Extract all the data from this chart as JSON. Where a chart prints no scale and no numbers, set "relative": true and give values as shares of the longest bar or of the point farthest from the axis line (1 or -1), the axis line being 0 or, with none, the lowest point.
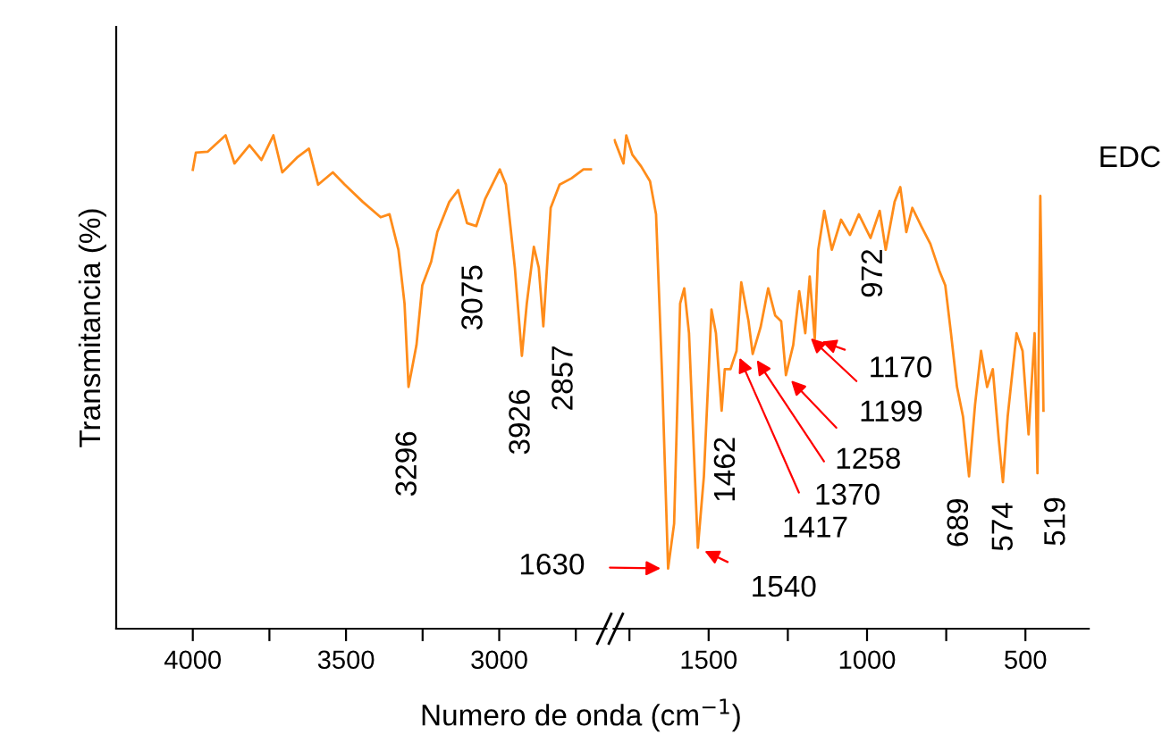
{
  "chart_data": [
    {
      "type": "line",
      "relative": true,
      "ylabel": "Transmitancia (%)",
      "xlabel": "Numero de onda (cm$^{−1}$)",
      "tick_labels": "x",
      "xlim": [
        4250,
        2650
      ],
      "xticks": [
        4000,
        {
          "value": 3750,
          "label": null
        },
        3500,
        {
          "value": 3250,
          "label": null
        },
        3000,
        {
          "value": 2750,
          "label": null
        }
      ],
      "series": [
        {
          "color": "#ff8c1a",
          "x": [
            4000,
            3990,
            3951,
            3893,
            3864,
            3815,
            3776,
            3737,
            3708,
            3660,
            3621,
            3591,
            3543,
            3504,
            3445,
            3387,
            3358,
            3329,
            3309,
            3296,
            3270,
            3251,
            3222,
            3202,
            3163,
            3134,
            3105,
            3075,
            3046,
            2998,
            2978,
            2949,
            2926,
            2910,
            2887,
            2871,
            2856,
            2832,
            2803,
            2764,
            2725,
            2701
          ],
          "values": [
            0.93,
            0.965,
            0.967,
            1,
            0.943,
            0.98,
            0.95,
            1,
            0.925,
            0.955,
            0.973,
            0.9,
            0.925,
            0.9,
            0.865,
            0.834,
            0.84,
            0.768,
            0.659,
            0.49,
            0.575,
            0.696,
            0.744,
            0.804,
            0.865,
            0.889,
            0.822,
            0.816,
            0.871,
            0.931,
            0.9,
            0.732,
            0.553,
            0.659,
            0.774,
            0.732,
            0.613,
            0.853,
            0.9,
            0.913,
            0.931,
            0.931
          ]
        }
      ],
      "annotations": [
        {
          "text": "3296",
          "x": 3296,
          "y": 0.49
        },
        {
          "text": "3075",
          "x": 3075,
          "y": 0.816
        },
        {
          "text": "3926",
          "x": 2926,
          "y": 0.553
        },
        {
          "text": "2857",
          "x": 2856,
          "y": 0.613
        }
      ]
    },
    {
      "type": "line",
      "relative": true,
      "tick_labels": "x",
      "xlim": [
        1800,
        300
      ],
      "xticks": [
        {
          "value": 1750,
          "label": null
        },
        1500,
        {
          "value": 1250,
          "label": null
        },
        1000,
        {
          "value": 750,
          "label": null
        },
        500
      ],
      "series": [
        {
          "name": "EDC",
          "color": "#ff8c1a",
          "x": [
            1797,
            1769,
            1760,
            1741,
            1713,
            1685,
            1666,
            1647,
            1628,
            1609,
            1590,
            1577,
            1562,
            1534,
            1515,
            1491,
            1477,
            1459,
            1449,
            1431,
            1412,
            1397,
            1374,
            1361,
            1336,
            1312,
            1290,
            1271,
            1256,
            1233,
            1214,
            1195,
            1181,
            1165,
            1154,
            1135,
            1111,
            1082,
            1054,
            1026,
            989,
            960,
            941,
            913,
            895,
            876,
            857,
            829,
            800,
            772,
            753,
            735,
            716,
            697,
            678,
            659,
            640,
            621,
            603,
            584,
            571,
            556,
            528,
            509,
            490,
            471,
            462,
            453,
            443
          ],
          "values": [
            0.99,
            0.943,
            1,
            0.961,
            0.937,
            0.907,
            0.84,
            0.514,
            0.122,
            0.213,
            0.659,
            0.69,
            0.599,
            0.164,
            0.309,
            0.647,
            0.599,
            0.442,
            0.526,
            0.526,
            0.563,
            0.702,
            0.623,
            0.557,
            0.611,
            0.69,
            0.635,
            0.623,
            0.514,
            0.575,
            0.684,
            0.599,
            0.714,
            0.587,
            0.768,
            0.847,
            0.768,
            0.829,
            0.798,
            0.84,
            0.792,
            0.847,
            0.768,
            0.865,
            0.895,
            0.804,
            0.853,
            0.816,
            0.78,
            0.726,
            0.696,
            0.599,
            0.49,
            0.43,
            0.309,
            0.454,
            0.563,
            0.49,
            0.526,
            0.382,
            0.297,
            0.43,
            0.599,
            0.563,
            0.394,
            0.599,
            0.315,
            0.877,
            0.442
          ]
        }
      ],
      "annotations": [
        {
          "text": "1630",
          "x": 1628,
          "y": 0.122
        },
        {
          "text": "1540",
          "x": 1534,
          "y": 0.164
        },
        {
          "text": "1462",
          "x": 1459,
          "y": 0.442
        },
        {
          "text": "1417",
          "x": 1412,
          "y": 0.563
        },
        {
          "text": "1370",
          "x": 1361,
          "y": 0.557
        },
        {
          "text": "1258",
          "x": 1256,
          "y": 0.514
        },
        {
          "text": "1199",
          "x": 1195,
          "y": 0.599
        },
        {
          "text": "1170",
          "x": 1165,
          "y": 0.587
        },
        {
          "text": "972",
          "x": 960,
          "y": 0.847
        },
        {
          "text": "689",
          "x": 678,
          "y": 0.309
        },
        {
          "text": "574",
          "x": 571,
          "y": 0.297
        },
        {
          "text": "519",
          "x": 462,
          "y": 0.315
        }
      ]
    }
  ]
}
